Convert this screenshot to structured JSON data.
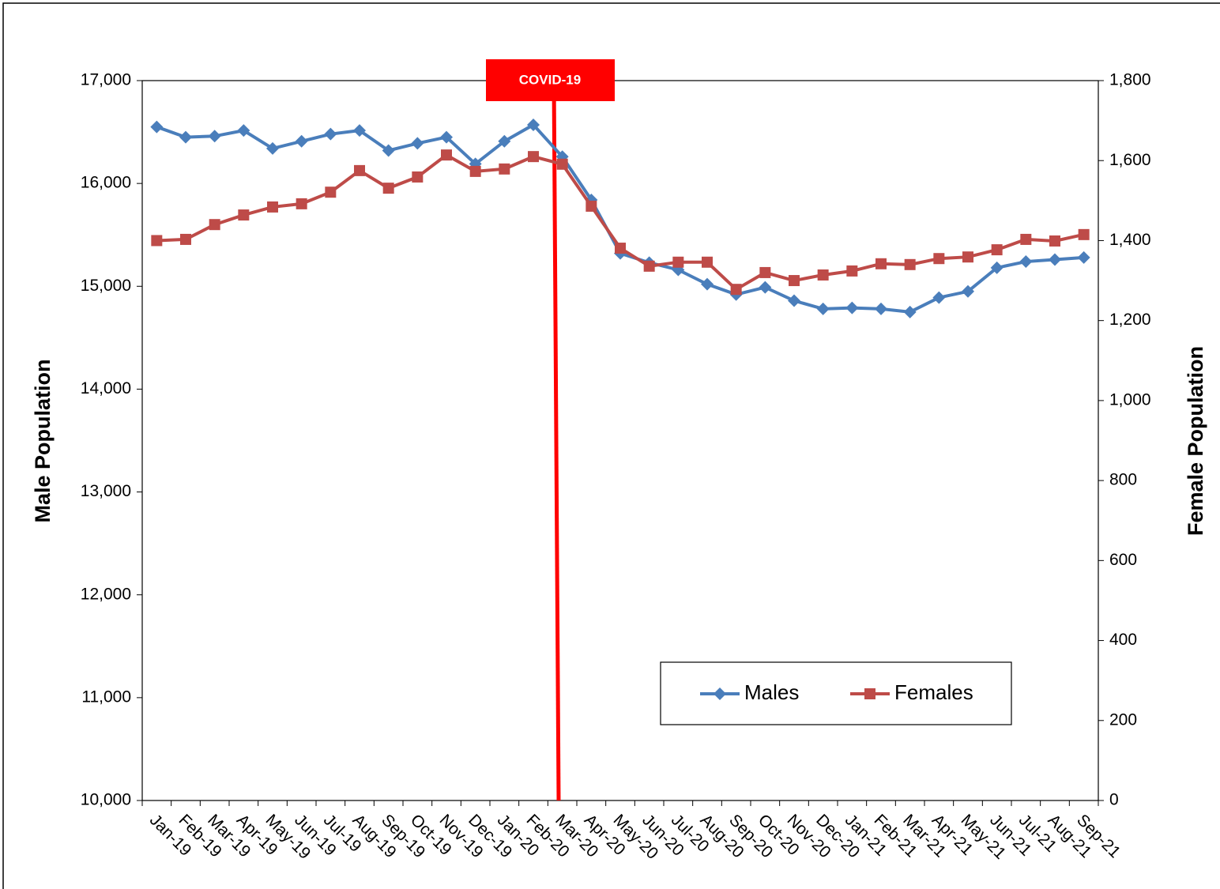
{
  "chart_data": {
    "type": "line",
    "annotation": "COVID-19",
    "y_label": "Male Population",
    "y2_label": "Female Population",
    "categories": [
      "Jan-19",
      "Feb-19",
      "Mar-19",
      "Apr-19",
      "May-19",
      "Jun-19",
      "Jul-19",
      "Aug-19",
      "Sep-19",
      "Oct-19",
      "Nov-19",
      "Dec-19",
      "Jan-20",
      "Feb-20",
      "Mar-20",
      "Apr-20",
      "May-20",
      "Jun-20",
      "Jul-20",
      "Aug-20",
      "Sep-20",
      "Oct-20",
      "Nov-20",
      "Dec-20",
      "Jan-21",
      "Feb-21",
      "Mar-21",
      "Apr-21",
      "May-21",
      "Jun-21",
      "Jul-21",
      "Aug-21",
      "Sep-21"
    ],
    "series": [
      {
        "name": "Males",
        "color": "#4a7ebb",
        "marker": "diamond",
        "axis": "y",
        "values": [
          16550,
          16450,
          16460,
          16515,
          16340,
          16410,
          16480,
          16515,
          16320,
          16390,
          16450,
          16190,
          16410,
          16570,
          16260,
          15840,
          15320,
          15230,
          15160,
          15020,
          14920,
          14990,
          14860,
          14780,
          14790,
          14780,
          14750,
          14890,
          14950,
          15180,
          15240,
          15260,
          15280
        ]
      },
      {
        "name": "Females",
        "color": "#be4b48",
        "marker": "square",
        "axis": "y2",
        "values": [
          1400,
          1403,
          1440,
          1464,
          1484,
          1492,
          1521,
          1575,
          1531,
          1559,
          1614,
          1573,
          1579,
          1610,
          1591,
          1486,
          1381,
          1336,
          1346,
          1346,
          1278,
          1320,
          1300,
          1314,
          1324,
          1342,
          1340,
          1355,
          1359,
          1377,
          1403,
          1399,
          1415
        ]
      }
    ],
    "ylim": [
      10000,
      17000
    ],
    "yticks": [
      {
        "value": 10000,
        "label": "10,000"
      },
      {
        "value": 11000,
        "label": "11,000"
      },
      {
        "value": 12000,
        "label": "12,000"
      },
      {
        "value": 13000,
        "label": "13,000"
      },
      {
        "value": 14000,
        "label": "14,000"
      },
      {
        "value": 15000,
        "label": "15,000"
      },
      {
        "value": 16000,
        "label": "16,000"
      },
      {
        "value": 17000,
        "label": "17,000"
      }
    ],
    "y2lim": [
      0,
      1800
    ],
    "y2ticks": [
      0,
      200,
      400,
      600,
      800,
      {
        "value": 1000,
        "label": "1,000"
      },
      {
        "value": 1200,
        "label": "1,200"
      },
      {
        "value": 1400,
        "label": "1,400"
      },
      {
        "value": 1600,
        "label": "1,600"
      },
      {
        "value": 1800,
        "label": "1,800"
      }
    ],
    "legend": "lower right",
    "grid": false
  }
}
